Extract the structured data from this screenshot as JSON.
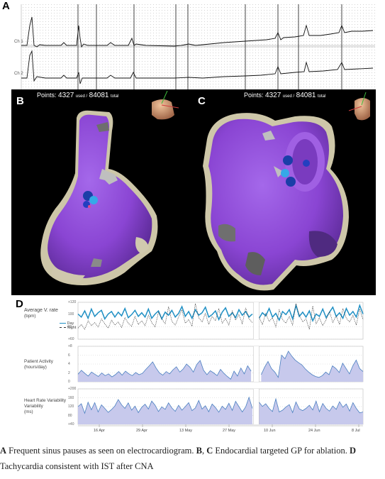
{
  "panels": {
    "a_letter": "A",
    "b_letter": "B",
    "c_letter": "C",
    "d_letter": "D"
  },
  "ecg": {
    "channel1": "Ch 1",
    "channel2": "Ch 2"
  },
  "maps": {
    "points_prefix": "Points:",
    "points_used": "4327",
    "used_label": "used /",
    "points_total": "84081",
    "total_label": "total"
  },
  "chart_data": [
    {
      "type": "line",
      "title": "Average V. rate",
      "unit": "(bpm)",
      "legend": [
        "Day",
        "Night"
      ],
      "legend_position": "top-left",
      "ylim": [
        60,
        120
      ],
      "y_ticks": [
        "+120",
        "100",
        "80",
        "+60"
      ],
      "series": [
        {
          "name": "Day",
          "color": "#1e8fc4",
          "values": [
            101,
            96,
            106,
            94,
            109,
            97,
            103,
            107,
            93,
            101,
            105,
            96,
            104,
            98,
            110,
            95,
            100,
            107,
            97,
            103,
            96,
            109,
            94,
            101,
            106,
            93,
            104,
            99,
            107,
            96,
            102,
            113,
            97,
            105,
            94,
            108,
            99,
            103,
            112,
            96,
            100,
            106,
            92,
            104,
            111,
            97,
            103,
            95,
            108,
            99,
            105,
            96,
            101,
            107,
            94,
            103,
            98,
            110,
            96,
            102,
            91,
            105,
            100,
            108,
            93,
            115,
            97,
            104,
            96,
            106,
            90,
            101,
            97,
            109,
            95,
            104,
            112,
            97,
            103,
            94,
            110,
            99,
            105,
            96,
            115,
            101
          ]
        },
        {
          "name": "Night",
          "color": "#333333",
          "values": [
            78,
            84,
            76,
            90,
            82,
            87,
            80,
            93,
            85,
            78,
            91,
            83,
            88,
            79,
            95,
            86,
            81,
            97,
            84,
            90,
            82,
            99,
            87,
            80,
            104,
            93,
            85,
            113,
            89,
            83,
            96,
            108,
            86,
            92,
            81,
            118,
            95,
            88,
            102,
            84,
            97,
            90,
            110,
            86,
            94,
            83,
            106,
            91,
            100,
            85,
            111,
            93,
            87,
            115,
            96,
            84,
            102,
            89,
            95,
            80,
            108,
            92,
            86,
            97,
            83,
            118,
            99,
            88,
            93,
            76,
            114,
            85,
            95,
            82,
            92,
            105,
            87,
            98,
            84,
            110,
            94,
            88,
            99,
            83,
            109,
            92
          ]
        }
      ]
    },
    {
      "type": "area",
      "title": "Patient Activity",
      "unit": "(hours/day)",
      "ylim": [
        0,
        8
      ],
      "y_ticks": [
        "+8",
        "6",
        "4",
        "2",
        "0"
      ],
      "series": [
        {
          "name": "Activity",
          "color": "#4a7fc0",
          "values": [
            1.7,
            2.6,
            1.9,
            1.3,
            2.2,
            1.7,
            1.2,
            2.0,
            1.4,
            1.8,
            1.1,
            1.6,
            2.3,
            1.5,
            2.4,
            1.8,
            1.4,
            2.1,
            1.6,
            1.9,
            2.8,
            3.6,
            4.5,
            3.1,
            2.0,
            1.5,
            2.3,
            1.8,
            2.7,
            3.4,
            2.2,
            2.9,
            4.0,
            3.3,
            2.2,
            3.9,
            4.8,
            2.6,
            1.6,
            2.5,
            2.0,
            1.4,
            2.8,
            1.9,
            1.2,
            0.6,
            2.4,
            1.3,
            3.1,
            1.8,
            3.6,
            2.4,
            2.0,
            4.0,
            1.6,
            3.3,
            4.6,
            3.0,
            2.2,
            1.0,
            6.0,
            5.2,
            6.9,
            5.8,
            4.9,
            4.3,
            3.8,
            2.9,
            2.2,
            1.6,
            1.2,
            1.0,
            1.4,
            2.2,
            1.6,
            3.6,
            3.0,
            2.1,
            4.2,
            3.0,
            1.8,
            3.6,
            4.9,
            3.0,
            2.3
          ]
        }
      ]
    },
    {
      "type": "area",
      "title": "Heart Rate Variability",
      "unit": "(ms)",
      "ylim": [
        40,
        200
      ],
      "y_ticks": [
        "+200",
        "160",
        "120",
        "80",
        "+40"
      ],
      "series": [
        {
          "name": "HRV",
          "color": "#4a7fc0",
          "values": [
            120,
            133,
            90,
            140,
            106,
            138,
            96,
            128,
            112,
            94,
            107,
            123,
            152,
            128,
            112,
            137,
            104,
            122,
            93,
            117,
            131,
            109,
            145,
            126,
            98,
            119,
            108,
            137,
            114,
            99,
            126,
            104,
            120,
            138,
            102,
            114,
            148,
            109,
            124,
            97,
            132,
            116,
            95,
            122,
            108,
            135,
            103,
            144,
            120,
            96,
            119,
            162,
            112,
            98,
            140,
            121,
            133,
            112,
            98,
            155,
            96,
            104,
            118,
            129,
            93,
            141,
            110,
            102,
            112,
            126,
            105,
            145,
            97,
            134,
            112,
            100,
            123,
            108,
            142,
            117,
            132,
            100,
            138,
            112,
            92,
            96
          ]
        }
      ]
    }
  ],
  "d_axis": {
    "x_ticks": [
      "16 Apr",
      "29 Apr",
      "13 May",
      "27 May",
      "10 Jun",
      "24 Jun",
      "8 Jul"
    ]
  },
  "caption": {
    "a_label": "A",
    "a_text": " Frequent sinus pauses as seen on electrocardiogram. ",
    "bc_label": "B",
    "bc_sep": ", ",
    "c_label": "C",
    "bc_text": " Endocardial targeted GP for ablation. ",
    "d_label": "D",
    "d_text": " Tachycardia consistent with IST after CNA"
  },
  "colors": {
    "map_purple": "#8e4bd6",
    "map_background": "#000000",
    "scar_beige": "#cfc7ad",
    "ablation_blue": "#1a6be0",
    "chart_line_day": "#1e8fc4",
    "chart_fill": "#c7c9ec"
  }
}
